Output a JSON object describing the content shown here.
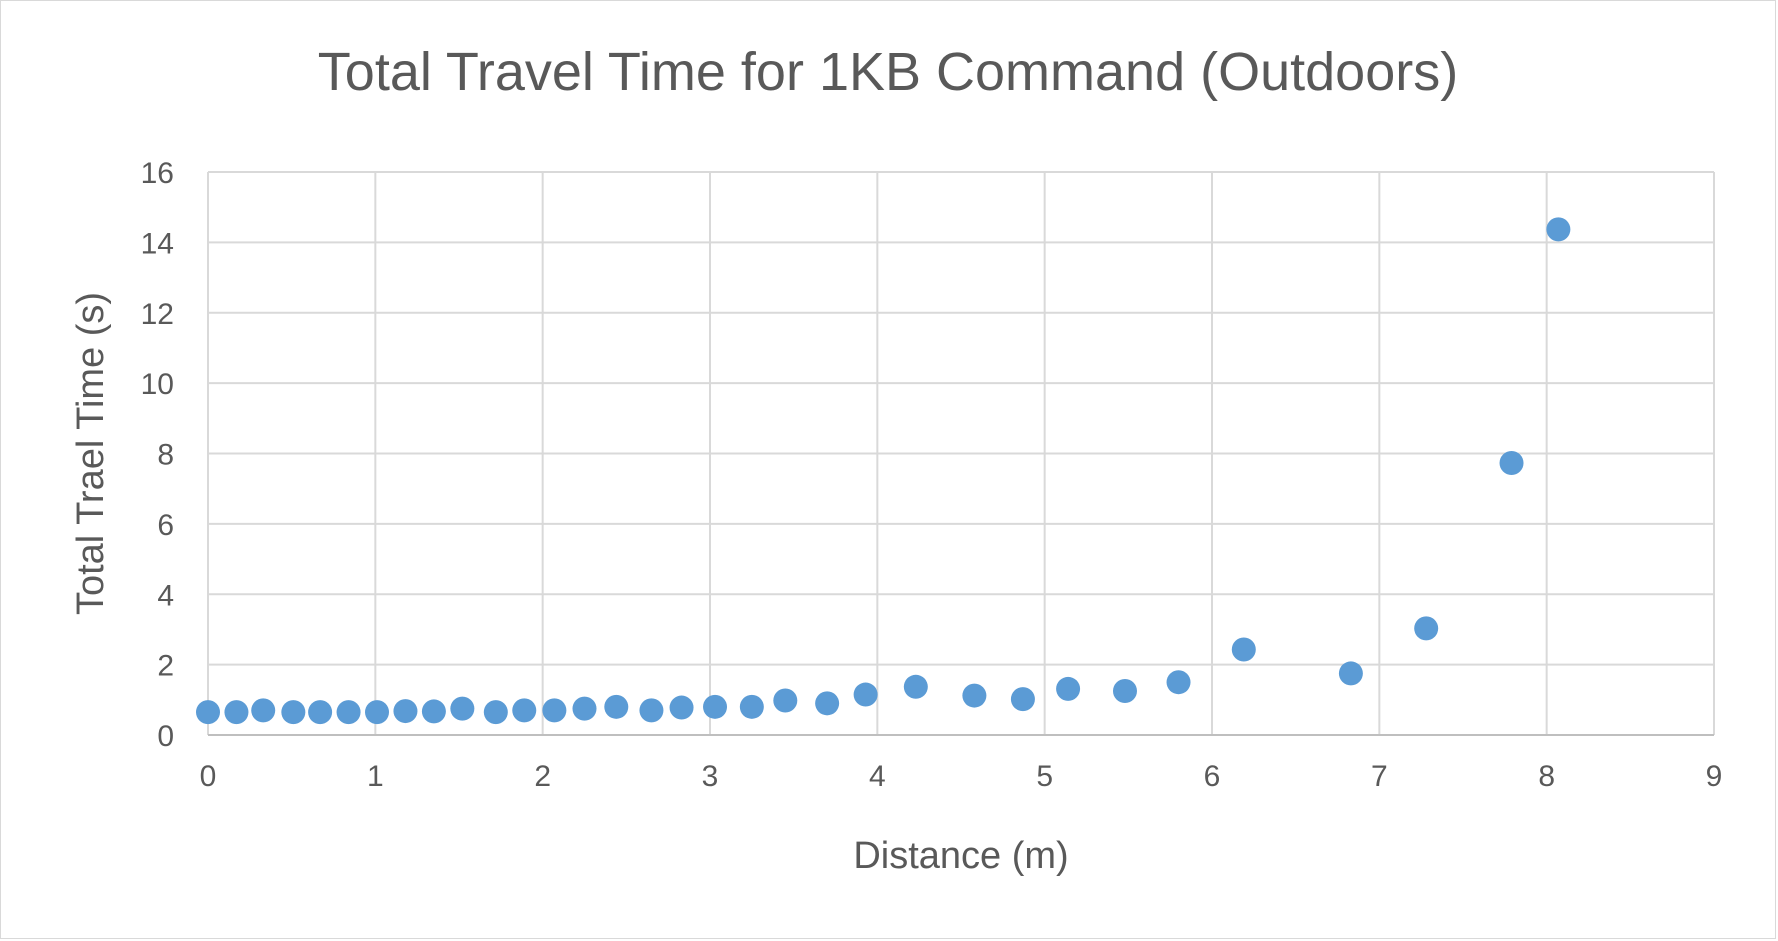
{
  "chart_data": {
    "type": "scatter",
    "title": "Total Travel Time for 1KB Command (Outdoors)",
    "xlabel": "Distance (m)",
    "ylabel": "Total Trael Time (s)",
    "xlim": [
      0,
      9
    ],
    "ylim": [
      0,
      16
    ],
    "x_ticks": [
      0,
      1,
      2,
      3,
      4,
      5,
      6,
      7,
      8,
      9
    ],
    "y_ticks": [
      0,
      2,
      4,
      6,
      8,
      10,
      12,
      14,
      16
    ],
    "grid": true,
    "legend": "none",
    "marker_color": "#5b9bd5",
    "grid_color": "#d9d9d9",
    "text_color": "#595959",
    "x": [
      0,
      0.17,
      0.33,
      0.51,
      0.67,
      0.84,
      1.01,
      1.18,
      1.35,
      1.52,
      1.72,
      1.89,
      2.07,
      2.25,
      2.44,
      2.65,
      2.83,
      3.03,
      3.25,
      3.45,
      3.7,
      3.93,
      4.23,
      4.58,
      4.87,
      5.14,
      5.48,
      5.8,
      6.19,
      6.83,
      7.28,
      7.79,
      8.07
    ],
    "y": [
      0.65,
      0.65,
      0.7,
      0.65,
      0.65,
      0.65,
      0.65,
      0.68,
      0.67,
      0.75,
      0.65,
      0.7,
      0.7,
      0.75,
      0.8,
      0.7,
      0.78,
      0.8,
      0.8,
      0.98,
      0.9,
      1.15,
      1.37,
      1.12,
      1.02,
      1.31,
      1.25,
      1.5,
      2.43,
      1.75,
      3.03,
      7.73,
      14.37
    ]
  }
}
